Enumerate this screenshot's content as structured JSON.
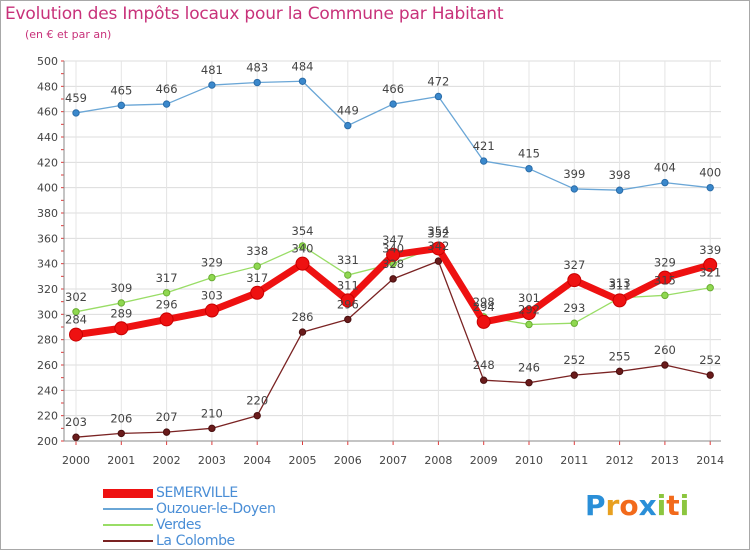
{
  "title": "Evolution des Impôts locaux pour la Commune par Habitant",
  "subtitle": "(en € et par an)",
  "logo": {
    "text": "Proxiti",
    "colors": [
      "#2a8fd8",
      "#e8a020",
      "#f26a1b",
      "#2a8fd8",
      "#8cc63f",
      "#f26a1b",
      "#8cc63f"
    ]
  },
  "chart_data": {
    "type": "line",
    "title": "Evolution des Impôts locaux pour la Commune par Habitant",
    "subtitle": "(en € et par an)",
    "xlabel": "",
    "ylabel": "",
    "ylim": [
      200,
      500
    ],
    "ytick_step": 20,
    "yticks": [
      "200",
      "220",
      "240",
      "260",
      "280",
      "300",
      "320",
      "340",
      "360",
      "380",
      "400",
      "420",
      "440",
      "460",
      "480",
      "500"
    ],
    "x": [
      "2000",
      "2001",
      "2002",
      "2003",
      "2004",
      "2005",
      "2006",
      "2007",
      "2008",
      "2009",
      "2010",
      "2011",
      "2012",
      "2013",
      "2014"
    ],
    "grid": true,
    "series": [
      {
        "name": "SEMERVILLE",
        "color": "#ee1111",
        "values": [
          284,
          289,
          296,
          303,
          317,
          340,
          311,
          347,
          352,
          294,
          301,
          327,
          311,
          329,
          339
        ],
        "label_values": [
          "284",
          "289",
          "296",
          "303",
          "317",
          "340",
          "311",
          "347",
          "352",
          "294",
          "301",
          "327",
          "311",
          "329",
          "339"
        ]
      },
      {
        "name": "Ouzouer-le-Doyen",
        "color": "#6aa6d6",
        "values": [
          459,
          465,
          466,
          481,
          483,
          484,
          449,
          466,
          472,
          421,
          415,
          399,
          398,
          404,
          400
        ],
        "label_values": [
          "459",
          "465",
          "466",
          "481",
          "483",
          "484",
          "449",
          "466",
          "472",
          "421",
          "415",
          "399",
          "398",
          "404",
          "400"
        ]
      },
      {
        "name": "Verdes",
        "color": "#99dd66",
        "values": [
          302,
          309,
          317,
          329,
          338,
          354,
          331,
          340,
          354,
          298,
          292,
          293,
          313,
          315,
          321
        ],
        "label_values": [
          "302",
          "309",
          "317",
          "329",
          "338",
          "354",
          "331",
          "340",
          "354",
          "298",
          "292",
          "293",
          "313",
          "315",
          "321"
        ]
      },
      {
        "name": "La Colombe",
        "color": "#7a2323",
        "values": [
          203,
          206,
          207,
          210,
          220,
          286,
          296,
          328,
          342,
          248,
          246,
          252,
          255,
          260,
          252
        ],
        "label_values": [
          "203",
          "206",
          "207",
          "210",
          "220",
          "286",
          "296",
          "328",
          "342",
          "248",
          "246",
          "252",
          "255",
          "260",
          "252"
        ]
      }
    ]
  }
}
